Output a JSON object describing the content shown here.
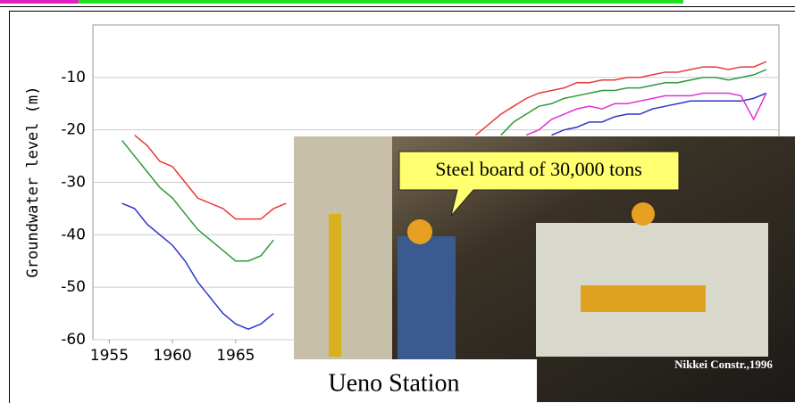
{
  "chart_data": {
    "type": "line",
    "y_label": "Groundwater level (m)",
    "x": [
      1955,
      1956,
      1957,
      1958,
      1959,
      1960,
      1961,
      1962,
      1963,
      1964,
      1965,
      1966,
      1967,
      1968,
      1969,
      1970,
      1971,
      1972,
      1973,
      1974,
      1975,
      1976,
      1977,
      1978,
      1979,
      1980,
      1981,
      1982,
      1983,
      1984,
      1985,
      1986,
      1987,
      1988,
      1989,
      1990,
      1991,
      1992,
      1993,
      1994,
      1995,
      1996,
      1997,
      1998,
      1999,
      2000,
      2001,
      2002,
      2003,
      2004,
      2005,
      2006,
      2007
    ],
    "series": [
      {
        "color": "#e8393a",
        "values": [
          null,
          null,
          -21,
          -23,
          -26,
          -27,
          -30,
          -33,
          -34,
          -35,
          -37,
          -37,
          -37,
          -35,
          -34,
          null,
          null,
          null,
          null,
          null,
          null,
          null,
          null,
          null,
          null,
          null,
          null,
          null,
          null,
          -21,
          -19,
          -17,
          -15.5,
          -14,
          -13,
          -12.5,
          -12,
          -11,
          -11,
          -10.5,
          -10.5,
          -10,
          -10,
          -9.5,
          -9,
          -9,
          -8.5,
          -8,
          -8,
          -8.5,
          -8,
          -8,
          -7
        ]
      },
      {
        "color": "#2e9a3a",
        "values": [
          null,
          -22,
          -25,
          -28,
          -31,
          -33,
          -36,
          -39,
          -41,
          -43,
          -45,
          -45,
          -44,
          -41,
          null,
          null,
          null,
          null,
          null,
          null,
          null,
          null,
          null,
          null,
          null,
          null,
          null,
          null,
          null,
          null,
          null,
          -21,
          -18.5,
          -17,
          -15.5,
          -15,
          -14,
          -13.5,
          -13,
          -12.5,
          -12.5,
          -12,
          -12,
          -11.5,
          -11,
          -11,
          -10.5,
          -10,
          -10,
          -10.5,
          -10,
          -9.5,
          -8.5
        ]
      },
      {
        "color": "#2b36c8",
        "values": [
          null,
          -34,
          -35,
          -38,
          -40,
          -42,
          -45,
          -49,
          -52,
          -55,
          -57,
          -58,
          -57,
          -55,
          null,
          null,
          null,
          null,
          null,
          null,
          null,
          null,
          null,
          null,
          null,
          null,
          null,
          null,
          null,
          null,
          null,
          null,
          null,
          null,
          null,
          -21,
          -20,
          -19.5,
          -18.5,
          -18.5,
          -17.5,
          -17,
          -17,
          -16,
          -15.5,
          -15,
          -14.5,
          -14.5,
          -14.5,
          -14.5,
          -14.5,
          -14,
          -13
        ]
      },
      {
        "color": "#e030d0",
        "values": [
          null,
          null,
          null,
          null,
          null,
          null,
          null,
          null,
          null,
          null,
          null,
          null,
          null,
          null,
          null,
          null,
          null,
          null,
          null,
          null,
          null,
          null,
          null,
          null,
          null,
          null,
          null,
          null,
          null,
          null,
          null,
          null,
          null,
          -21,
          -20,
          -18,
          -17,
          -16,
          -15.5,
          -16,
          -15,
          -15,
          -14.5,
          -14,
          -13.5,
          -13.5,
          -13.5,
          -13,
          -13,
          -13,
          -13.5,
          -18,
          -13
        ]
      }
    ],
    "xlim": [
      1953.7,
      2008
    ],
    "xticks": [
      1955,
      1960,
      1965
    ],
    "ylim": [
      -60,
      0
    ],
    "yticks": [
      -60,
      -50,
      -40,
      -30,
      -20,
      -10
    ],
    "grid": true
  },
  "photo": {
    "callout": "Steel board of 30,000 tons",
    "caption": "Ueno Station",
    "credit": "Nikkei Constr.,1996"
  }
}
